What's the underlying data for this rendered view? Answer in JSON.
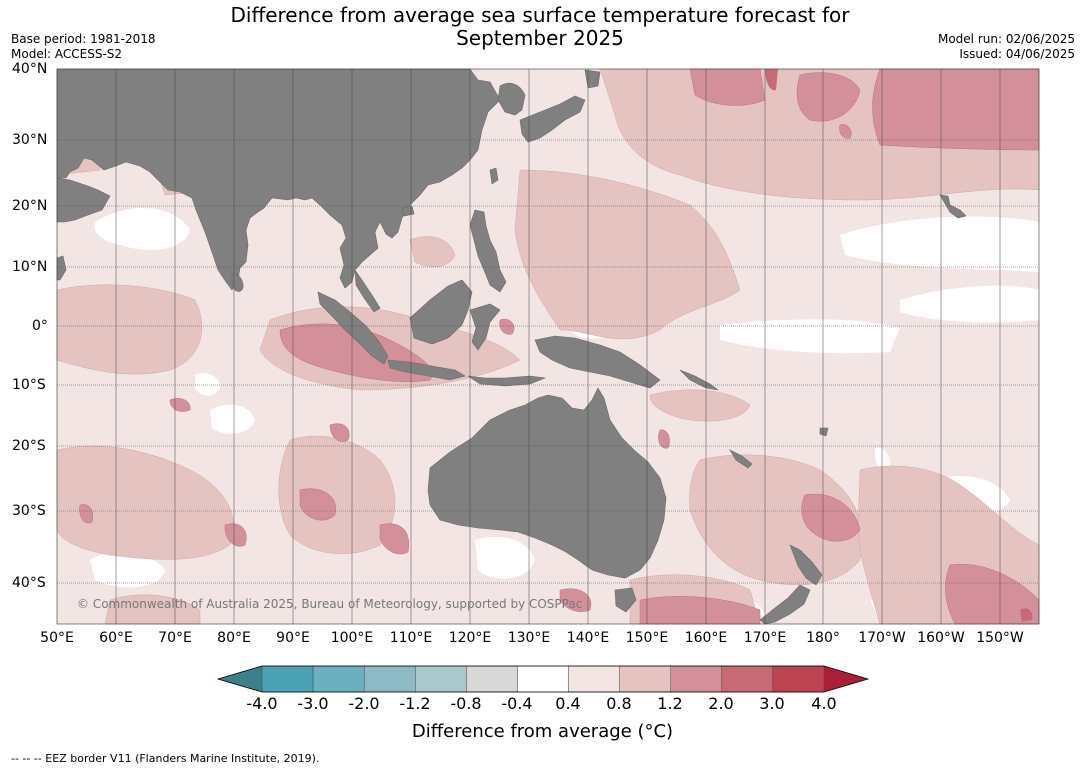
{
  "title_line1": "Difference from average sea surface temperature forecast for",
  "title_line2": "September 2025",
  "base_period": "Base period: 1981-2018",
  "model": "Model: ACCESS-S2",
  "model_run": "Model run: 02/06/2025",
  "issued": "Issued: 04/06/2025",
  "copyright": "© Commonwealth of Australia 2025, Bureau of Meteorology, supported by COSPPac",
  "footer": "--  --  -- EEZ border V11 (Flanders Marine Institute, 2019).",
  "lat_labels": [
    "40°N",
    "30°N",
    "20°N",
    "10°N",
    "0°",
    "10°S",
    "20°S",
    "30°S",
    "40°S"
  ],
  "lon_labels": [
    "50°E",
    "60°E",
    "70°E",
    "80°E",
    "90°E",
    "100°E",
    "110°E",
    "120°E",
    "130°E",
    "140°E",
    "150°E",
    "160°E",
    "170°E",
    "180°",
    "170°W",
    "160°W",
    "150°W"
  ],
  "colorbar": {
    "title": "Difference from average (°C)",
    "ticks": [
      "-4.0",
      "-3.0",
      "-2.0",
      "-1.2",
      "-0.8",
      "-0.4",
      "0.4",
      "0.8",
      "1.2",
      "2.0",
      "3.0",
      "4.0"
    ],
    "colors": [
      "#3b808a",
      "#4aa2b4",
      "#6bb0bf",
      "#8ebac6",
      "#a9c8cc",
      "#d8d8d8",
      "#ffffff",
      "#f3e5e4",
      "#e5c3c1",
      "#d4909a",
      "#c86a75",
      "#bd4352",
      "#a91f38"
    ]
  },
  "map_colors": {
    "land": "#808080",
    "anom_04_08": "#f3e5e4",
    "anom_08_12": "#e5c3c1",
    "anom_12_20": "#d4909a",
    "anom_20_30": "#c86a75"
  }
}
